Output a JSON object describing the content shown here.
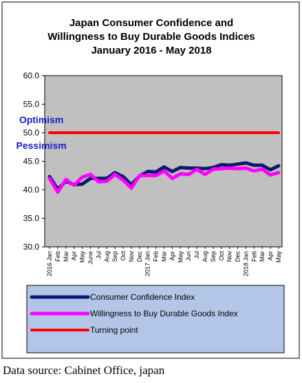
{
  "chart_data": {
    "type": "line",
    "title_lines": [
      "Japan Consumer Confidence and",
      "Willingness to Buy Durable Goods Indices",
      "January 2016 - May 2018"
    ],
    "xlabel": "",
    "ylabel": "",
    "ylim": [
      30,
      60
    ],
    "yticks": [
      "30.0",
      "35.0",
      "40.0",
      "45.0",
      "50.0",
      "55.0",
      "60.0"
    ],
    "grid": false,
    "legend_position": "bottom",
    "x": [
      "2016 Jan",
      "Feb",
      "Mar",
      "Apr",
      "May",
      "June",
      "Jul",
      "Aug",
      "Sep",
      "Oct",
      "Nov",
      "Dec",
      "2017 Jan",
      "Feb",
      "Mar",
      "Apr",
      "May",
      "Jun",
      "Jul",
      "Aug",
      "Sep",
      "Oct",
      "Nov",
      "Dec",
      "2018 Jan",
      "Feb",
      "Mar",
      "Apr",
      "May"
    ],
    "series": [
      {
        "name": "Consumer Confidence Index",
        "color": "#0b1a6e",
        "values": [
          42.3,
          40.1,
          41.5,
          40.9,
          41.0,
          42.0,
          42.0,
          42.0,
          43.0,
          42.3,
          40.9,
          42.4,
          43.2,
          43.1,
          44.0,
          43.2,
          43.9,
          43.8,
          43.8,
          43.7,
          43.9,
          44.4,
          44.3,
          44.5,
          44.7,
          44.3,
          44.3,
          43.5,
          44.2
        ]
      },
      {
        "name": "Willingness to Buy Durable Goods Index",
        "color": "#ff00ff",
        "values": [
          42.0,
          39.6,
          41.8,
          40.8,
          42.2,
          42.7,
          41.4,
          41.5,
          42.7,
          41.7,
          40.3,
          42.5,
          42.5,
          42.5,
          43.3,
          42.0,
          42.8,
          42.7,
          43.6,
          42.7,
          43.6,
          43.7,
          43.8,
          43.7,
          43.8,
          43.3,
          43.6,
          42.6,
          43.0
        ]
      },
      {
        "name": "Turning point",
        "color": "#ff0000",
        "values": [
          50,
          50,
          50,
          50,
          50,
          50,
          50,
          50,
          50,
          50,
          50,
          50,
          50,
          50,
          50,
          50,
          50,
          50,
          50,
          50,
          50,
          50,
          50,
          50,
          50,
          50,
          50,
          50,
          50
        ]
      }
    ],
    "annotations": [
      {
        "text": "Optimism",
        "x": "2017 Jun",
        "y": 52.3,
        "color": "#1a1acd"
      },
      {
        "text": "Pessimism",
        "x": "2017 Jun",
        "y": 47.8,
        "color": "#1a1acd"
      }
    ],
    "colors": {
      "plot_background": "#c0c0c0",
      "legend_background": "#b4c6e7",
      "frame": "#000000"
    }
  },
  "source_note": "Data source: Cabinet Office, japan"
}
